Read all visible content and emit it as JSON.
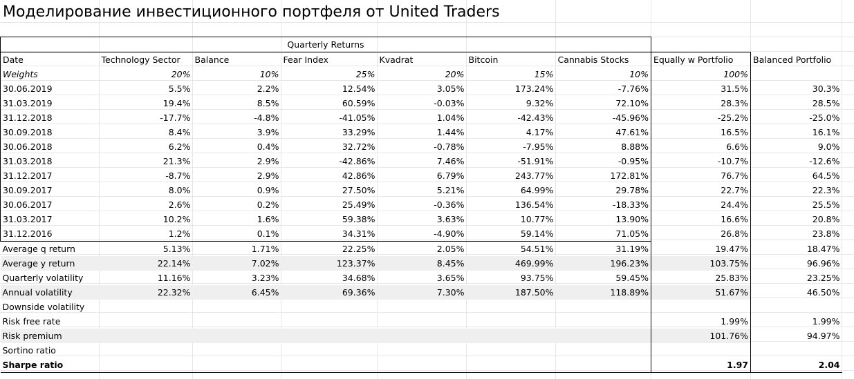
{
  "title": "Моделирование инвестиционного портфеля от United Traders",
  "section_title": "Quarterly Returns",
  "headers": [
    "Date",
    "Technology Sector",
    "Balance",
    "Fear Index",
    "Kvadrat",
    "Bitcoin",
    "Cannabis Stocks",
    "Equally w Portfolio",
    "Balanced Portfolio"
  ],
  "weights": {
    "label": "Weights",
    "values": [
      "20%",
      "10%",
      "25%",
      "20%",
      "15%",
      "10%",
      "100%",
      ""
    ]
  },
  "rows": [
    {
      "date": "30.06.2019",
      "values": [
        "5.5%",
        "2.2%",
        "12.54%",
        "3.05%",
        "173.24%",
        "-7.76%",
        "31.5%",
        "30.3%"
      ]
    },
    {
      "date": "31.03.2019",
      "values": [
        "19.4%",
        "8.5%",
        "60.59%",
        "-0.03%",
        "9.32%",
        "72.10%",
        "28.3%",
        "28.5%"
      ]
    },
    {
      "date": "31.12.2018",
      "values": [
        "-17.7%",
        "-4.8%",
        "-41.05%",
        "1.04%",
        "-42.43%",
        "-45.96%",
        "-25.2%",
        "-25.0%"
      ]
    },
    {
      "date": "30.09.2018",
      "values": [
        "8.4%",
        "3.9%",
        "33.29%",
        "1.44%",
        "4.17%",
        "47.61%",
        "16.5%",
        "16.1%"
      ]
    },
    {
      "date": "30.06.2018",
      "values": [
        "6.2%",
        "0.4%",
        "32.72%",
        "-0.78%",
        "-7.95%",
        "8.88%",
        "6.6%",
        "9.0%"
      ]
    },
    {
      "date": "31.03.2018",
      "values": [
        "21.3%",
        "2.9%",
        "-42.86%",
        "7.46%",
        "-51.91%",
        "-0.95%",
        "-10.7%",
        "-12.6%"
      ]
    },
    {
      "date": "31.12.2017",
      "values": [
        "-8.7%",
        "2.9%",
        "42.86%",
        "6.79%",
        "243.77%",
        "172.81%",
        "76.7%",
        "64.5%"
      ]
    },
    {
      "date": "30.09.2017",
      "values": [
        "8.0%",
        "0.9%",
        "27.50%",
        "5.21%",
        "64.99%",
        "29.78%",
        "22.7%",
        "22.3%"
      ]
    },
    {
      "date": "30.06.2017",
      "values": [
        "2.6%",
        "0.2%",
        "25.49%",
        "-0.36%",
        "136.54%",
        "-18.33%",
        "24.4%",
        "25.5%"
      ]
    },
    {
      "date": "31.03.2017",
      "values": [
        "10.2%",
        "1.6%",
        "59.38%",
        "3.63%",
        "10.77%",
        "13.90%",
        "16.6%",
        "20.8%"
      ]
    },
    {
      "date": "31.12.2016",
      "values": [
        "1.2%",
        "0.1%",
        "34.31%",
        "-4.90%",
        "59.14%",
        "71.05%",
        "26.8%",
        "23.8%"
      ]
    }
  ],
  "stats": [
    {
      "label": "Average q return",
      "values": [
        "5.13%",
        "1.71%",
        "22.25%",
        "2.05%",
        "54.51%",
        "31.19%",
        "19.47%",
        "18.47%"
      ],
      "shade": false
    },
    {
      "label": "Average y return",
      "values": [
        "22.14%",
        "7.02%",
        "123.37%",
        "8.45%",
        "469.99%",
        "196.23%",
        "103.75%",
        "96.96%"
      ],
      "shade": true
    },
    {
      "label": "Quarterly volatility",
      "values": [
        "11.16%",
        "3.23%",
        "34.68%",
        "3.65%",
        "93.75%",
        "59.45%",
        "25.83%",
        "23.25%"
      ],
      "shade": false
    },
    {
      "label": "Annual volatility",
      "values": [
        "22.32%",
        "6.45%",
        "69.36%",
        "7.30%",
        "187.50%",
        "118.89%",
        "51.67%",
        "46.50%"
      ],
      "shade": true
    },
    {
      "label": "Downside volatility",
      "values": [
        "",
        "",
        "",
        "",
        "",
        "",
        "",
        ""
      ],
      "shade": false
    },
    {
      "label": "Risk free rate",
      "values": [
        "",
        "",
        "",
        "",
        "",
        "",
        "1.99%",
        "1.99%"
      ],
      "shade": false
    },
    {
      "label": "Risk premium",
      "values": [
        "",
        "",
        "",
        "",
        "",
        "",
        "101.76%",
        "94.97%"
      ],
      "shade": true
    },
    {
      "label": "Sortino ratio",
      "values": [
        "",
        "",
        "",
        "",
        "",
        "",
        "",
        ""
      ],
      "shade": false
    },
    {
      "label": "Sharpe ratio",
      "values": [
        "",
        "",
        "",
        "",
        "",
        "",
        "1.97",
        "2.04"
      ],
      "shade": false,
      "bold": true
    }
  ]
}
